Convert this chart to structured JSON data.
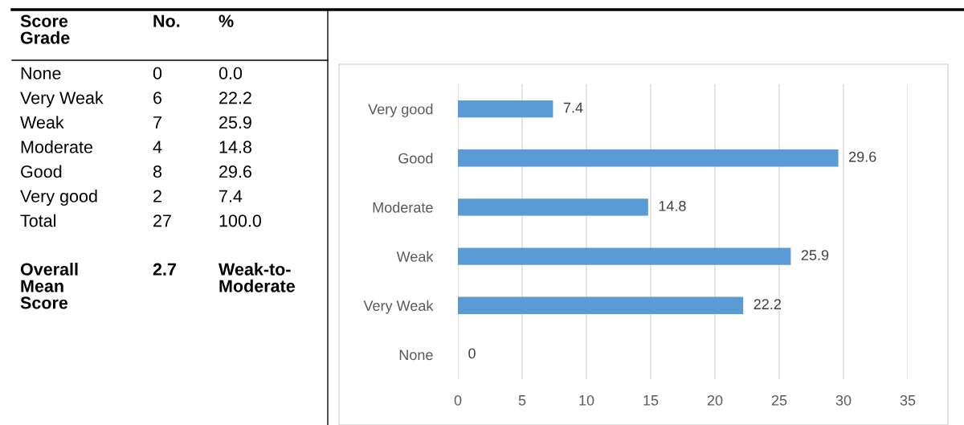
{
  "chart_data": [
    {
      "type": "other",
      "annotations": [
        "Score\nGrade",
        "No.",
        "%",
        "None",
        "0",
        "0.0",
        "Very Weak",
        "6",
        "22.2",
        "Weak",
        "7",
        "25.9",
        "Moderate",
        "4",
        "14.8",
        "Good",
        "8",
        "29.6",
        "Very good",
        "2",
        "7.4",
        "Total",
        "27",
        "100.0",
        "Overall\nMean\nScore",
        "2.7",
        "Weak-to-\nModerate"
      ]
    },
    {
      "type": "bar",
      "orientation": "horizontal",
      "categories": [
        "Very good",
        "Good",
        "Moderate",
        "Weak",
        "Very Weak",
        "None"
      ],
      "values": [
        7.4,
        29.6,
        14.8,
        25.9,
        22.2,
        0
      ],
      "color": "#5b9bd5",
      "data_labels": true,
      "xlim": [
        0,
        35
      ],
      "xticks": [
        0,
        5,
        10,
        15,
        20,
        25,
        30,
        35
      ],
      "grid": "x"
    }
  ]
}
